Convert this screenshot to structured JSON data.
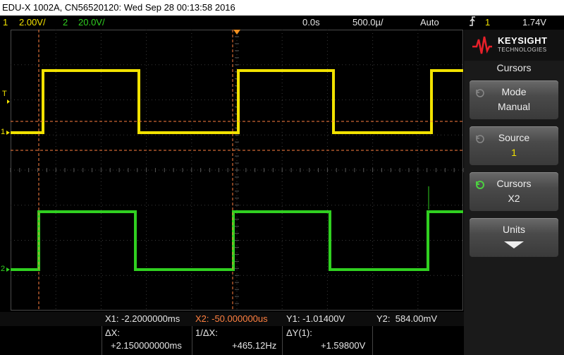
{
  "title": "EDU-X 1002A, CN56520120: Wed Sep 28 00:13:58 2016",
  "status": {
    "ch1_num": "1",
    "ch1_scale": "2.00V/",
    "ch2_num": "2",
    "ch2_scale": "20.0V/",
    "time_offset": "0.0s",
    "time_scale": "500.0µ/",
    "trigger_mode": "Auto",
    "trigger_source": "1",
    "trigger_level": "1.74V"
  },
  "brand": {
    "name": "KEYSIGHT",
    "sub": "TECHNOLOGIES"
  },
  "menu": {
    "title": "Cursors",
    "softkeys": [
      {
        "label": "Mode",
        "value": "Manual"
      },
      {
        "label": "Source",
        "value": "1"
      },
      {
        "label": "Cursors",
        "value": "X2"
      },
      {
        "label": "Units",
        "value": ""
      }
    ]
  },
  "screen": {
    "trigger_marker": "T",
    "ch1_marker": "1",
    "ch2_marker": "2"
  },
  "readout": {
    "x1": "X1: -2.2000000ms",
    "x2": "X2: -50.000000us",
    "y1": "Y1: -1.01400V",
    "y2": "Y2:  584.00mV",
    "dx_label": "ΔX:",
    "dx_value": "+2.150000000ms",
    "inv_dx_label": "1/ΔX:",
    "inv_dx_value": "+465.12Hz",
    "dy_label": "ΔY(1):",
    "dy_value": "+1.59800V"
  },
  "colors": {
    "ch1": "#f2e200",
    "ch2": "#30d020",
    "cursor": "#ff8040",
    "grid": "#3a3a3a"
  }
}
